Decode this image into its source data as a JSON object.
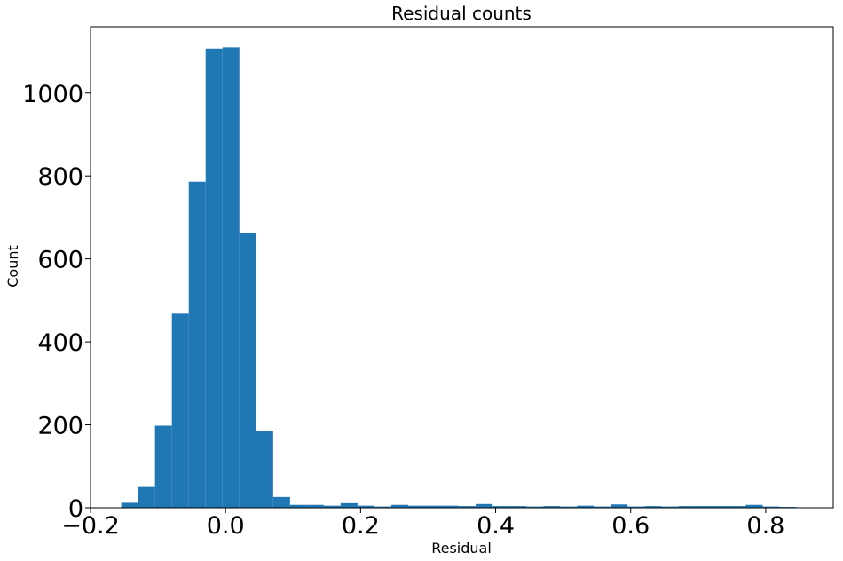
{
  "chart_data": {
    "type": "bar",
    "title": "Residual counts",
    "xlabel": "Residual",
    "ylabel": "Count",
    "xlim": [
      -0.2,
      0.9
    ],
    "ylim": [
      0,
      1160
    ],
    "x_ticks": [
      -0.2,
      0.0,
      0.2,
      0.4,
      0.6,
      0.8
    ],
    "x_tick_labels": [
      "−0.2",
      "0.0",
      "0.2",
      "0.4",
      "0.6",
      "0.8"
    ],
    "y_ticks": [
      0,
      200,
      400,
      600,
      800,
      1000
    ],
    "y_tick_labels": [
      "0",
      "200",
      "400",
      "600",
      "800",
      "1000"
    ],
    "grid": false,
    "bar_color": "#1f77b4",
    "bin_edges": [
      -0.1545,
      -0.1295,
      -0.1045,
      -0.0795,
      -0.0545,
      -0.0295,
      -0.0045,
      0.0205,
      0.0455,
      0.0705,
      0.0955,
      0.1205,
      0.1455,
      0.1705,
      0.1955,
      0.2205,
      0.2455,
      0.2705,
      0.2955,
      0.3205,
      0.3455,
      0.3705,
      0.3955,
      0.4205,
      0.4455,
      0.4705,
      0.4955,
      0.5205,
      0.5455,
      0.5705,
      0.5955,
      0.6205,
      0.6455,
      0.6705,
      0.6955,
      0.7205,
      0.7455,
      0.7705,
      0.7955,
      0.8205,
      0.8455
    ],
    "values": [
      12,
      50,
      198,
      468,
      786,
      1107,
      1110,
      662,
      184,
      26,
      7,
      7,
      5,
      11,
      5,
      3,
      7,
      5,
      5,
      5,
      4,
      9,
      4,
      4,
      3,
      4,
      3,
      5,
      3,
      8,
      3,
      4,
      3,
      4,
      4,
      4,
      4,
      7,
      3,
      2
    ]
  }
}
